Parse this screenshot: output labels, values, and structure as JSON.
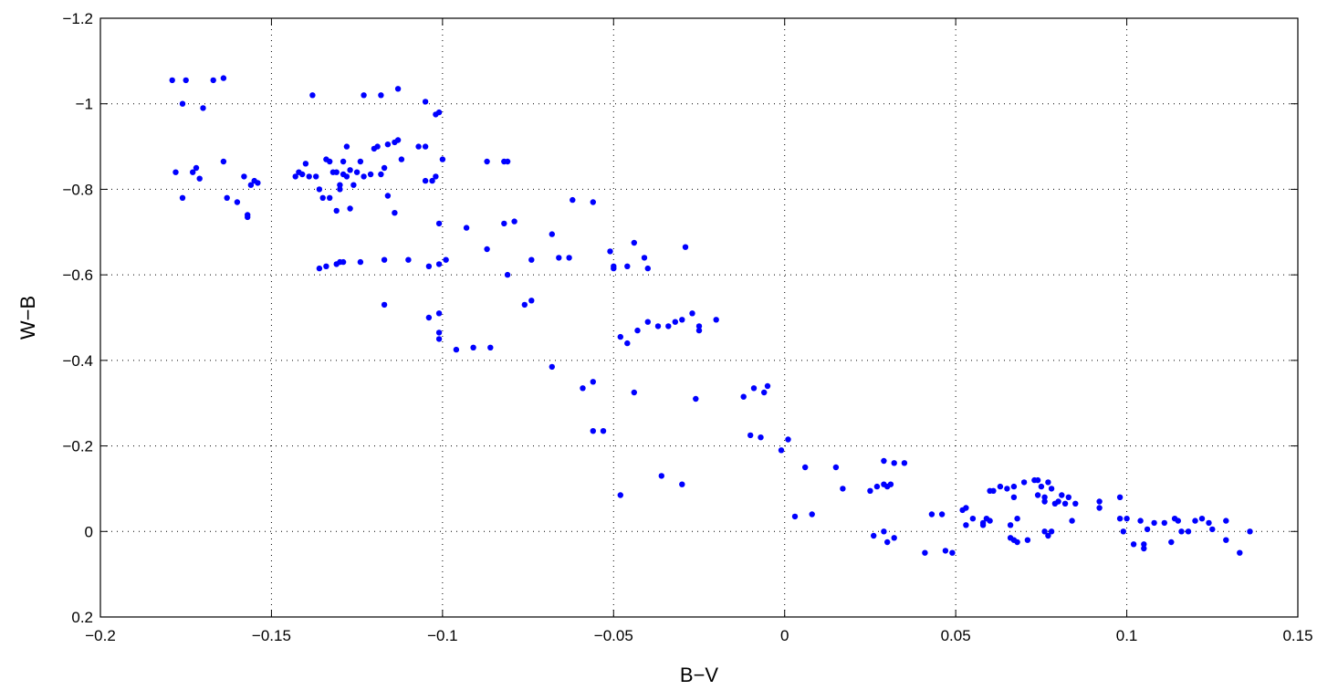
{
  "chart_data": {
    "type": "scatter",
    "title": "",
    "xlabel": "B−V",
    "ylabel": "W−B",
    "xlim": [
      -0.2,
      0.15
    ],
    "ylim": [
      -1.2,
      0.2
    ],
    "y_reversed": true,
    "grid": true,
    "x_ticks": [
      -0.2,
      -0.15,
      -0.1,
      -0.05,
      0,
      0.05,
      0.1,
      0.15
    ],
    "x_tick_labels": [
      "−0.2",
      "−0.15",
      "−0.1",
      "−0.05",
      "0",
      "0.05",
      "0.1",
      "0.15"
    ],
    "y_ticks": [
      -1.2,
      -1,
      -0.8,
      -0.6,
      -0.4,
      -0.2,
      0,
      0.2
    ],
    "y_tick_labels": [
      "−1.2",
      "−1",
      "−0.8",
      "−0.6",
      "−0.4",
      "−0.2",
      "0",
      "0.2"
    ],
    "marker_color": "#0000ff",
    "series": [
      {
        "points": [
          [
            -0.179,
            -1.055
          ],
          [
            -0.175,
            -1.055
          ],
          [
            -0.167,
            -1.055
          ],
          [
            -0.164,
            -1.06
          ],
          [
            -0.176,
            -1.0
          ],
          [
            -0.17,
            -0.99
          ],
          [
            -0.178,
            -0.84
          ],
          [
            -0.173,
            -0.84
          ],
          [
            -0.172,
            -0.85
          ],
          [
            -0.171,
            -0.825
          ],
          [
            -0.176,
            -0.78
          ],
          [
            -0.164,
            -0.865
          ],
          [
            -0.163,
            -0.78
          ],
          [
            -0.16,
            -0.77
          ],
          [
            -0.158,
            -0.83
          ],
          [
            -0.157,
            -0.74
          ],
          [
            -0.157,
            -0.735
          ],
          [
            -0.156,
            -0.81
          ],
          [
            -0.154,
            -0.815
          ],
          [
            -0.155,
            -0.82
          ],
          [
            -0.138,
            -1.02
          ],
          [
            -0.123,
            -1.02
          ],
          [
            -0.118,
            -1.02
          ],
          [
            -0.113,
            -1.035
          ],
          [
            -0.105,
            -1.005
          ],
          [
            -0.102,
            -0.975
          ],
          [
            -0.101,
            -0.98
          ],
          [
            -0.143,
            -0.83
          ],
          [
            -0.142,
            -0.84
          ],
          [
            -0.141,
            -0.835
          ],
          [
            -0.139,
            -0.83
          ],
          [
            -0.14,
            -0.86
          ],
          [
            -0.137,
            -0.83
          ],
          [
            -0.136,
            -0.8
          ],
          [
            -0.135,
            -0.78
          ],
          [
            -0.134,
            -0.87
          ],
          [
            -0.133,
            -0.865
          ],
          [
            -0.132,
            -0.84
          ],
          [
            -0.131,
            -0.84
          ],
          [
            -0.13,
            -0.8
          ],
          [
            -0.129,
            -0.835
          ],
          [
            -0.128,
            -0.83
          ],
          [
            -0.127,
            -0.845
          ],
          [
            -0.126,
            -0.81
          ],
          [
            -0.125,
            -0.84
          ],
          [
            -0.124,
            -0.865
          ],
          [
            -0.123,
            -0.83
          ],
          [
            -0.121,
            -0.835
          ],
          [
            -0.12,
            -0.895
          ],
          [
            -0.119,
            -0.9
          ],
          [
            -0.118,
            -0.835
          ],
          [
            -0.117,
            -0.85
          ],
          [
            -0.116,
            -0.905
          ],
          [
            -0.114,
            -0.91
          ],
          [
            -0.113,
            -0.915
          ],
          [
            -0.116,
            -0.785
          ],
          [
            -0.114,
            -0.745
          ],
          [
            -0.131,
            -0.75
          ],
          [
            -0.127,
            -0.755
          ],
          [
            -0.133,
            -0.78
          ],
          [
            -0.129,
            -0.865
          ],
          [
            -0.107,
            -0.9
          ],
          [
            -0.105,
            -0.9
          ],
          [
            -0.105,
            -0.82
          ],
          [
            -0.103,
            -0.82
          ],
          [
            -0.102,
            -0.83
          ],
          [
            -0.1,
            -0.87
          ],
          [
            -0.112,
            -0.87
          ],
          [
            -0.128,
            -0.9
          ],
          [
            -0.13,
            -0.81
          ],
          [
            -0.136,
            -0.615
          ],
          [
            -0.134,
            -0.62
          ],
          [
            -0.131,
            -0.625
          ],
          [
            -0.13,
            -0.63
          ],
          [
            -0.129,
            -0.63
          ],
          [
            -0.124,
            -0.63
          ],
          [
            -0.117,
            -0.635
          ],
          [
            -0.11,
            -0.635
          ],
          [
            -0.104,
            -0.62
          ],
          [
            -0.101,
            -0.625
          ],
          [
            -0.099,
            -0.635
          ],
          [
            -0.101,
            -0.72
          ],
          [
            -0.117,
            -0.53
          ],
          [
            -0.104,
            -0.5
          ],
          [
            -0.101,
            -0.51
          ],
          [
            -0.101,
            -0.465
          ],
          [
            -0.101,
            -0.45
          ],
          [
            -0.096,
            -0.425
          ],
          [
            -0.091,
            -0.43
          ],
          [
            -0.086,
            -0.43
          ],
          [
            -0.093,
            -0.71
          ],
          [
            -0.087,
            -0.66
          ],
          [
            -0.087,
            -0.865
          ],
          [
            -0.082,
            -0.865
          ],
          [
            -0.081,
            -0.865
          ],
          [
            -0.082,
            -0.72
          ],
          [
            -0.079,
            -0.725
          ],
          [
            -0.081,
            -0.6
          ],
          [
            -0.076,
            -0.53
          ],
          [
            -0.074,
            -0.54
          ],
          [
            -0.074,
            -0.635
          ],
          [
            -0.068,
            -0.695
          ],
          [
            -0.066,
            -0.64
          ],
          [
            -0.063,
            -0.64
          ],
          [
            -0.062,
            -0.775
          ],
          [
            -0.056,
            -0.77
          ],
          [
            -0.068,
            -0.385
          ],
          [
            -0.059,
            -0.335
          ],
          [
            -0.056,
            -0.35
          ],
          [
            -0.056,
            -0.235
          ],
          [
            -0.053,
            -0.235
          ],
          [
            -0.051,
            -0.655
          ],
          [
            -0.05,
            -0.62
          ],
          [
            -0.05,
            -0.615
          ],
          [
            -0.046,
            -0.62
          ],
          [
            -0.044,
            -0.675
          ],
          [
            -0.041,
            -0.64
          ],
          [
            -0.04,
            -0.615
          ],
          [
            -0.048,
            -0.455
          ],
          [
            -0.046,
            -0.44
          ],
          [
            -0.043,
            -0.47
          ],
          [
            -0.04,
            -0.49
          ],
          [
            -0.037,
            -0.48
          ],
          [
            -0.034,
            -0.48
          ],
          [
            -0.032,
            -0.49
          ],
          [
            -0.03,
            -0.495
          ],
          [
            -0.029,
            -0.665
          ],
          [
            -0.027,
            -0.51
          ],
          [
            -0.025,
            -0.48
          ],
          [
            -0.025,
            -0.47
          ],
          [
            -0.02,
            -0.495
          ],
          [
            -0.044,
            -0.325
          ],
          [
            -0.026,
            -0.31
          ],
          [
            -0.036,
            -0.13
          ],
          [
            -0.03,
            -0.11
          ],
          [
            -0.048,
            -0.085
          ],
          [
            -0.012,
            -0.315
          ],
          [
            -0.009,
            -0.335
          ],
          [
            -0.006,
            -0.325
          ],
          [
            -0.005,
            -0.34
          ],
          [
            -0.01,
            -0.225
          ],
          [
            -0.007,
            -0.22
          ],
          [
            -0.001,
            -0.19
          ],
          [
            0.001,
            -0.215
          ],
          [
            0.003,
            -0.035
          ],
          [
            0.008,
            -0.04
          ],
          [
            0.006,
            -0.15
          ],
          [
            0.015,
            -0.15
          ],
          [
            0.017,
            -0.1
          ],
          [
            0.025,
            -0.095
          ],
          [
            0.027,
            -0.105
          ],
          [
            0.029,
            -0.11
          ],
          [
            0.03,
            -0.105
          ],
          [
            0.031,
            -0.11
          ],
          [
            0.032,
            -0.16
          ],
          [
            0.029,
            -0.165
          ],
          [
            0.035,
            -0.16
          ],
          [
            0.026,
            0.01
          ],
          [
            0.029,
            0.0
          ],
          [
            0.03,
            0.025
          ],
          [
            0.032,
            0.015
          ],
          [
            0.041,
            0.05
          ],
          [
            0.043,
            -0.04
          ],
          [
            0.046,
            -0.04
          ],
          [
            0.047,
            0.045
          ],
          [
            0.049,
            0.05
          ],
          [
            0.052,
            -0.05
          ],
          [
            0.053,
            -0.055
          ],
          [
            0.053,
            -0.015
          ],
          [
            0.055,
            -0.03
          ],
          [
            0.058,
            -0.02
          ],
          [
            0.058,
            -0.015
          ],
          [
            0.059,
            -0.03
          ],
          [
            0.06,
            -0.025
          ],
          [
            0.06,
            -0.095
          ],
          [
            0.061,
            -0.095
          ],
          [
            0.063,
            -0.105
          ],
          [
            0.065,
            -0.1
          ],
          [
            0.066,
            -0.015
          ],
          [
            0.066,
            0.015
          ],
          [
            0.067,
            0.02
          ],
          [
            0.068,
            0.025
          ],
          [
            0.067,
            -0.08
          ],
          [
            0.067,
            -0.105
          ],
          [
            0.068,
            -0.03
          ],
          [
            0.07,
            -0.115
          ],
          [
            0.071,
            0.02
          ],
          [
            0.073,
            -0.12
          ],
          [
            0.074,
            -0.12
          ],
          [
            0.075,
            -0.105
          ],
          [
            0.074,
            -0.085
          ],
          [
            0.076,
            -0.08
          ],
          [
            0.076,
            -0.07
          ],
          [
            0.076,
            0.0
          ],
          [
            0.077,
            0.01
          ],
          [
            0.078,
            0.0
          ],
          [
            0.077,
            -0.115
          ],
          [
            0.078,
            -0.1
          ],
          [
            0.079,
            -0.065
          ],
          [
            0.08,
            -0.07
          ],
          [
            0.081,
            -0.085
          ],
          [
            0.082,
            -0.065
          ],
          [
            0.083,
            -0.08
          ],
          [
            0.084,
            -0.025
          ],
          [
            0.085,
            -0.065
          ],
          [
            0.092,
            -0.07
          ],
          [
            0.092,
            -0.055
          ],
          [
            0.098,
            -0.08
          ],
          [
            0.098,
            -0.03
          ],
          [
            0.099,
            0.0
          ],
          [
            0.1,
            -0.03
          ],
          [
            0.102,
            0.03
          ],
          [
            0.104,
            -0.025
          ],
          [
            0.105,
            0.03
          ],
          [
            0.105,
            0.04
          ],
          [
            0.106,
            -0.005
          ],
          [
            0.108,
            -0.02
          ],
          [
            0.111,
            -0.02
          ],
          [
            0.113,
            0.025
          ],
          [
            0.114,
            -0.03
          ],
          [
            0.115,
            -0.025
          ],
          [
            0.116,
            0.0
          ],
          [
            0.118,
            0.0
          ],
          [
            0.12,
            -0.025
          ],
          [
            0.122,
            -0.03
          ],
          [
            0.124,
            -0.02
          ],
          [
            0.125,
            -0.005
          ],
          [
            0.129,
            -0.025
          ],
          [
            0.129,
            0.02
          ],
          [
            0.133,
            0.05
          ],
          [
            0.136,
            0.0
          ]
        ]
      }
    ]
  }
}
